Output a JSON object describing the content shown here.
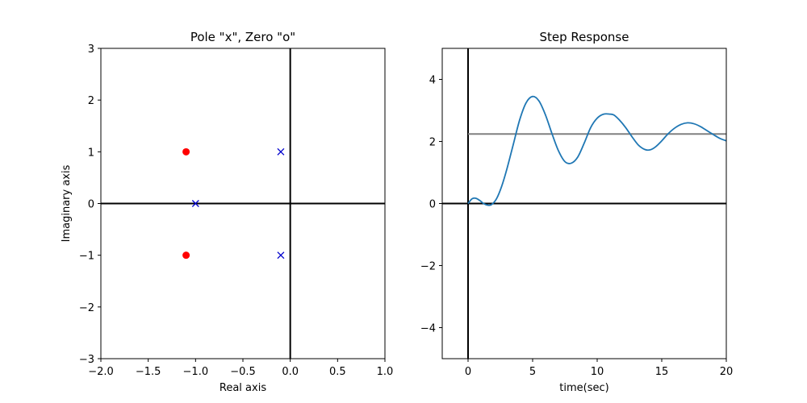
{
  "colors": {
    "pole": "#0000cc",
    "zero": "#ff0000",
    "response": "#1f77b4",
    "final_value": "#808080",
    "axes_lines": "#000000"
  },
  "chart_data": [
    {
      "type": "scatter",
      "title": "Pole \"x\", Zero \"o\"",
      "xlabel": "Real axis",
      "ylabel": "Imaginary axis",
      "xlim": [
        -2.0,
        1.0
      ],
      "ylim": [
        -3,
        3
      ],
      "xticks": [
        -2.0,
        -1.5,
        -1.0,
        -0.5,
        0.0,
        0.5,
        1.0
      ],
      "xtick_labels": [
        "−2.0",
        "−1.5",
        "−1.0",
        "−0.5",
        "0.0",
        "0.5",
        "1.0"
      ],
      "yticks": [
        -3,
        -2,
        -1,
        0,
        1,
        2,
        3
      ],
      "ytick_labels": [
        "−3",
        "−2",
        "−1",
        "0",
        "1",
        "2",
        "3"
      ],
      "grid": false,
      "series": [
        {
          "marker": "x",
          "points": [
            [
              -0.1,
              1
            ],
            [
              -0.1,
              -1
            ],
            [
              -1.0,
              0
            ]
          ]
        },
        {
          "marker": "o",
          "points": [
            [
              -1.1,
              1
            ],
            [
              -1.1,
              -1
            ]
          ]
        }
      ]
    },
    {
      "type": "line",
      "title": "Step Response",
      "xlabel": "time(sec)",
      "ylabel": "",
      "xlim": [
        -2,
        20
      ],
      "ylim": [
        -5,
        5
      ],
      "xticks": [
        0,
        5,
        10,
        15,
        20
      ],
      "xtick_labels": [
        "0",
        "5",
        "10",
        "15",
        "20"
      ],
      "yticks": [
        -4,
        -2,
        0,
        2,
        4
      ],
      "ytick_labels": [
        "−4",
        "−2",
        "0",
        "2",
        "4"
      ],
      "grid": false,
      "final_value": 2.24,
      "series": [
        {
          "x": [
            0,
            0.3,
            0.6,
            0.9,
            1.2,
            1.5,
            1.8,
            2.2,
            2.6,
            3.0,
            3.5,
            4.0,
            4.5,
            5.0,
            5.5,
            6.0,
            6.5,
            7.0,
            7.5,
            8.0,
            8.5,
            9.0,
            9.5,
            10.0,
            10.5,
            11.0,
            11.3,
            11.7,
            12.2,
            12.7,
            13.2,
            13.7,
            14.1,
            14.5,
            15.0,
            15.5,
            16.0,
            16.5,
            17.0,
            17.5,
            18.0,
            18.5,
            19.0,
            19.5,
            20.0
          ],
          "y": [
            0.0,
            0.15,
            0.17,
            0.1,
            0.0,
            -0.05,
            -0.04,
            0.15,
            0.55,
            1.1,
            1.9,
            2.7,
            3.25,
            3.45,
            3.3,
            2.85,
            2.25,
            1.7,
            1.35,
            1.3,
            1.5,
            1.95,
            2.45,
            2.75,
            2.88,
            2.88,
            2.85,
            2.7,
            2.45,
            2.15,
            1.88,
            1.74,
            1.73,
            1.82,
            2.02,
            2.25,
            2.43,
            2.55,
            2.6,
            2.57,
            2.48,
            2.35,
            2.22,
            2.1,
            2.02
          ]
        }
      ]
    }
  ]
}
